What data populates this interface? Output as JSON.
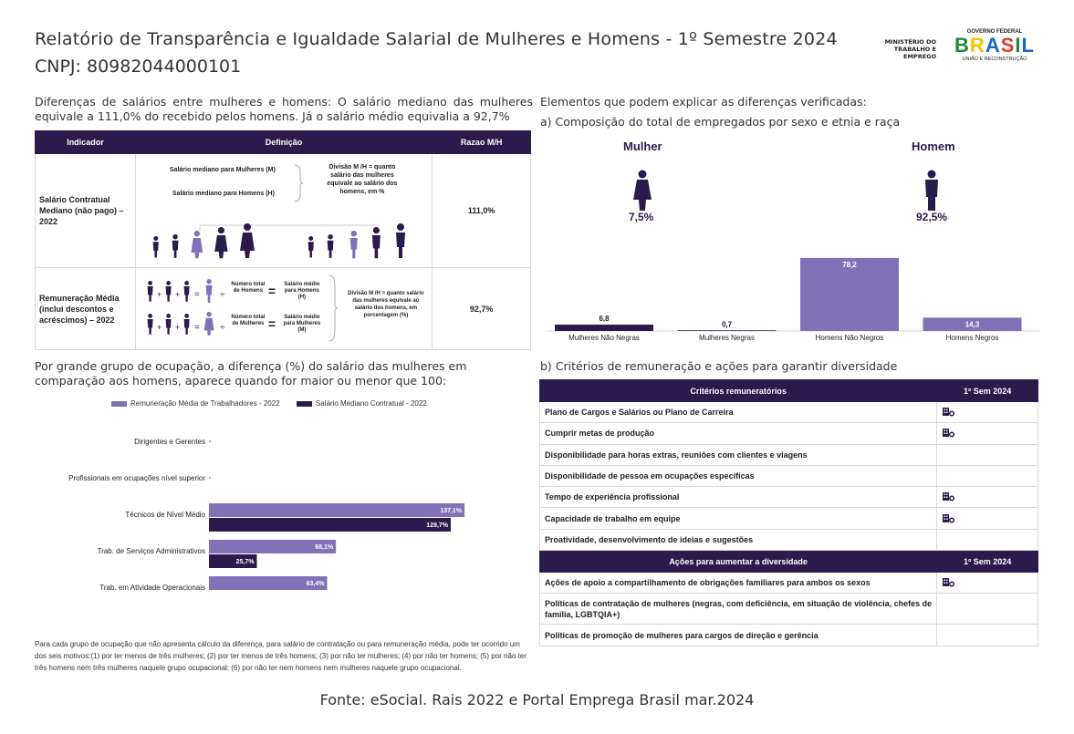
{
  "header": {
    "title": "Relatório de Transparência e Igualdade Salarial de Mulheres e Homens - 1º Semestre 2024",
    "cnpj": "CNPJ: 80982044000101",
    "ministry_logo": "MINISTÉRIO DO TRABALHO E EMPREGO",
    "gov_logo_top": "GOVERNO FEDERAL",
    "gov_logo_main": "BRASIL",
    "gov_logo_bottom": "UNIÃO E RECONSTRUÇÃO"
  },
  "left": {
    "intro": "Diferenças de salários entre mulheres e homens: O salário mediano das mulheres equivale a 111,0% do recebido pelos homens. Já o salário médio equivalia a 92,7%",
    "table": {
      "headers": [
        "Indicador",
        "Definição",
        "Razao M/H"
      ],
      "row1": {
        "indicator": "Salário Contratual Mediano (não pago) – 2022",
        "def_women": "Salário mediano para Mulheres (M)",
        "def_men": "Salário mediano para Homens (H)",
        "def_division": "Divisão M /H = quanto salário das mulheres equivale ao salário dos homens, em %",
        "ratio": "111,0%"
      },
      "row2": {
        "indicator": "Remuneração Média (inclui descontos e acréscimos) – 2022",
        "num_men": "Número total de Homens",
        "avg_men": "Salário médio para Homens (H)",
        "num_women": "Número total de Mulheres",
        "avg_women": "Salário médio para Mulheres (M)",
        "def_division": "Divisão M /H = quanto salário das mulheres equivale ao salário dos homens, em porcentagem (%)",
        "ratio": "92,7%"
      }
    },
    "occupation_intro": "Por grande grupo de ocupação, a diferença (%) do salário das mulheres em comparação aos homens, aparece quando for maior ou menor que 100:",
    "footnote": "Para cada grupo de ocupação que não apresenta cálculo da diferença, para salário de contratação ou para remuneração média, pode ter ocorrido um dos seis motivos:(1) por ter menos de três mulheres; (2) por ter menos de três homens; (3) por não ter mulheres; (4) por não ter homens; (5) por não ter três homens nem três mulheres naquele grupo ocupacional; (6) por não ter nem homens nem mulheres naquele grupo ocupacional."
  },
  "right": {
    "intro": "Elementos que podem explicar as diferenças verificadas:",
    "composition_title": "a) Composição do total de empregados por sexo e etnia e raça",
    "women_label": "Mulher",
    "women_pct": "7,5%",
    "men_label": "Homem",
    "men_pct": "92,5%",
    "criteria_title": "b) Critérios de remuneração e ações para garantir diversidade",
    "criteria_header": "Critérios remuneratórios",
    "semester_header": "1º Sem 2024",
    "criteria": [
      {
        "label": "Plano de Cargos e Salários ou Plano de Carreira",
        "checked": true
      },
      {
        "label": "Cumprir metas de produção",
        "checked": true
      },
      {
        "label": "Disponibilidade para horas extras, reuniões com clientes e viagens",
        "checked": false
      },
      {
        "label": "Disponibilidade de pessoa em ocupações especificas",
        "checked": false
      },
      {
        "label": "Tempo de experiência profissional",
        "checked": true
      },
      {
        "label": "Capacidade de trabalho em equipe",
        "checked": true
      },
      {
        "label": "Proatividade, desenvolvimento de ideias e sugestões",
        "checked": false
      }
    ],
    "actions_header": "Ações para aumentar a diversidade",
    "actions": [
      {
        "label": "Ações de apoio a compartilhamento de obrigações familiares para ambos os sexos",
        "checked": true
      },
      {
        "label": "Políticas de contratação de mulheres (negras, com deficiência, em situação de violência, chefes de família, LGBTQIA+)",
        "checked": false
      },
      {
        "label": "Políticas de promoção de mulheres para cargos de direção e gerência",
        "checked": false
      }
    ]
  },
  "source": "Fonte: eSocial. Rais 2022 e Portal Emprega Brasil mar.2024",
  "colors": {
    "dark": "#2d1a4d",
    "light": "#8172b8"
  },
  "chart_data": [
    {
      "type": "bar",
      "categories": [
        "Mulheres Não Negras",
        "Mulheres Negras",
        "Homens Não Negros",
        "Homens Negros"
      ],
      "values": [
        6.8,
        0.7,
        78.2,
        14.3
      ],
      "value_labels": [
        "6,8",
        "0,7",
        "78,2",
        "14,3"
      ],
      "colors": [
        "#2d1a4d",
        "#2d1a4d",
        "#8172b8",
        "#8172b8"
      ],
      "ylim": [
        0,
        80
      ]
    },
    {
      "type": "bar",
      "orientation": "horizontal",
      "categories": [
        "Dirigentes e Gerentes",
        "Profissionais em ocupações nível superior",
        "Técnicos de Nível Médio",
        "Trab. de Serviços Administrativos",
        "Trab. em Atividade Operacionais"
      ],
      "series": [
        {
          "name": "Remuneração Média de Trabalhadores - 2022",
          "color": "#8172b8",
          "values": [
            null,
            null,
            137.1,
            68.1,
            63.4
          ],
          "labels": [
            "",
            "",
            "137,1%",
            "68,1%",
            "63,4%"
          ]
        },
        {
          "name": "Salário Mediano Contratual - 2022",
          "color": "#2d1a4d",
          "values": [
            null,
            null,
            129.7,
            25.7,
            null
          ],
          "labels": [
            "",
            "",
            "129,7%",
            "25,7%",
            ""
          ]
        }
      ],
      "xlim": [
        0,
        140
      ],
      "legend": "top"
    }
  ]
}
